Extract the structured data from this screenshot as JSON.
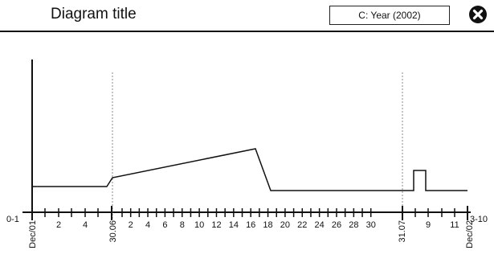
{
  "header": {
    "title": "Diagram title",
    "dropdown_value": "C: Year (2002)",
    "close_icon": "close-circle-icon"
  },
  "chart_data": {
    "type": "line",
    "x_start_label": "0-1",
    "x_end_label": "3-10",
    "period_labels": [
      "Dec/01",
      "30.06",
      "31.07",
      "Dec/02"
    ],
    "tick_labels_part1": [
      "2",
      "4"
    ],
    "tick_labels_part2": [
      "2",
      "4",
      "6",
      "8",
      "10",
      "12",
      "14",
      "16",
      "18",
      "20",
      "22",
      "24",
      "26",
      "28",
      "30"
    ],
    "tick_labels_part3": [
      "9",
      "11"
    ],
    "grid": false,
    "colors": {
      "line": "#111111",
      "axis": "#111111",
      "guide": "#888888"
    }
  }
}
